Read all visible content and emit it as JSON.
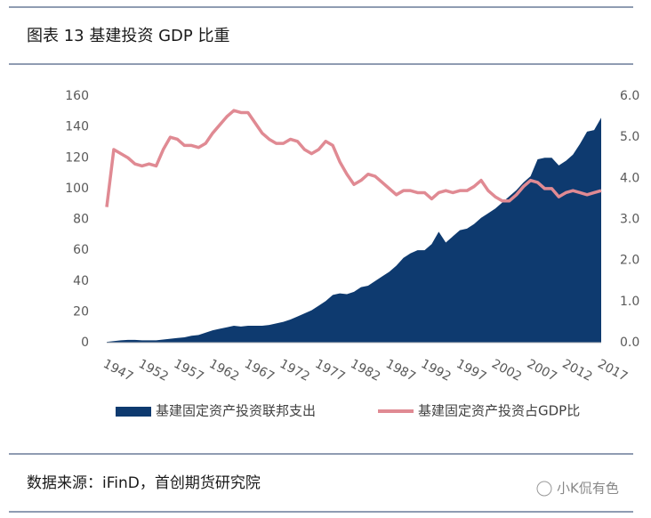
{
  "chart_data": {
    "type": "combo",
    "title": "图表 13  基建投资 GDP 比重",
    "source": "数据来源：iFinD，首创期货研究院",
    "watermark": "小K侃有色",
    "x": [
      1947,
      1948,
      1949,
      1950,
      1951,
      1952,
      1953,
      1954,
      1955,
      1956,
      1957,
      1958,
      1959,
      1960,
      1961,
      1962,
      1963,
      1964,
      1965,
      1966,
      1967,
      1968,
      1969,
      1970,
      1971,
      1972,
      1973,
      1974,
      1975,
      1976,
      1977,
      1978,
      1979,
      1980,
      1981,
      1982,
      1983,
      1984,
      1985,
      1986,
      1987,
      1988,
      1989,
      1990,
      1991,
      1992,
      1993,
      1994,
      1995,
      1996,
      1997,
      1998,
      1999,
      2000,
      2001,
      2002,
      2003,
      2004,
      2005,
      2006,
      2007,
      2008,
      2009,
      2010,
      2011,
      2012,
      2013,
      2014,
      2015,
      2016,
      2017
    ],
    "xlim": [
      1947,
      2017
    ],
    "xticks": [
      1947,
      1952,
      1957,
      1962,
      1967,
      1972,
      1977,
      1982,
      1987,
      1992,
      1997,
      2002,
      2007,
      2012,
      2017
    ],
    "ylim": [
      0,
      160
    ],
    "yticks": [
      0,
      20,
      40,
      60,
      80,
      100,
      120,
      140,
      160
    ],
    "y2lim": [
      0,
      6
    ],
    "y2ticks": [
      {
        "value": 0,
        "label": "0.0"
      },
      {
        "value": 1,
        "label": "1.0"
      },
      {
        "value": 2,
        "label": "2.0"
      },
      {
        "value": 3,
        "label": "3.0"
      },
      {
        "value": 4,
        "label": "4.0"
      },
      {
        "value": 5,
        "label": "5.0"
      },
      {
        "value": 6,
        "label": "6.0"
      }
    ],
    "legend": "bottom",
    "series": [
      {
        "name": "基建固定资产投资联邦支出",
        "type": "area",
        "color": "#0e3a6f",
        "values": [
          0.5,
          1,
          1.5,
          1.8,
          1.8,
          1.5,
          1.5,
          1.5,
          2,
          2.5,
          3,
          3.5,
          4.5,
          5,
          6.5,
          8,
          9,
          10,
          11,
          10.5,
          11,
          11,
          11,
          11.5,
          12.5,
          13.5,
          15,
          17,
          19,
          21,
          24,
          27,
          31,
          32,
          31.5,
          33,
          36,
          37,
          40,
          43,
          46,
          50,
          55,
          58,
          60,
          60,
          64,
          72,
          65,
          69,
          73,
          74,
          77,
          81,
          84,
          87,
          91,
          95,
          99,
          104,
          108,
          119,
          120,
          120,
          115,
          118,
          122,
          129,
          137,
          138,
          146
        ]
      },
      {
        "name": "基建固定资产投资占GDP比",
        "type": "line",
        "axis": "y2",
        "color": "#e08a93",
        "values": [
          3.3,
          4.7,
          4.6,
          4.5,
          4.35,
          4.3,
          4.35,
          4.3,
          4.7,
          5.0,
          4.95,
          4.8,
          4.8,
          4.75,
          4.85,
          5.1,
          5.3,
          5.5,
          5.65,
          5.6,
          5.6,
          5.35,
          5.1,
          4.95,
          4.85,
          4.85,
          4.95,
          4.9,
          4.7,
          4.6,
          4.7,
          4.9,
          4.8,
          4.4,
          4.1,
          3.85,
          3.95,
          4.1,
          4.05,
          3.9,
          3.75,
          3.6,
          3.7,
          3.7,
          3.65,
          3.65,
          3.5,
          3.65,
          3.7,
          3.65,
          3.7,
          3.7,
          3.8,
          3.95,
          3.7,
          3.55,
          3.45,
          3.45,
          3.6,
          3.8,
          3.95,
          3.9,
          3.75,
          3.75,
          3.55,
          3.65,
          3.7,
          3.65,
          3.6,
          3.65,
          3.7
        ]
      }
    ]
  }
}
